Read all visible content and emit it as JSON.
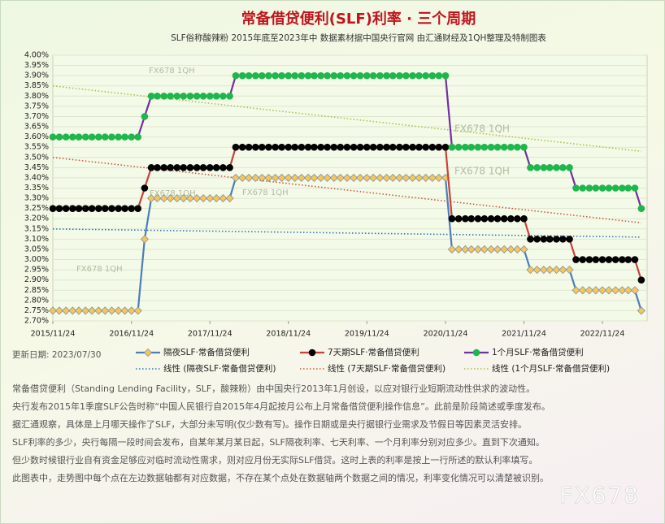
{
  "chart_data": {
    "type": "line",
    "title": "常备借贷便利(SLF)利率 · 三个周期",
    "subtitle": "SLF俗称酸辣粉  2015年底至2023年中  数据素材据中国央行官网  由汇通财经及1QH整理及特制图表",
    "x": [
      "2015/11/24",
      "2015/12/24",
      "2016/01/24",
      "2016/02/24",
      "2016/03/24",
      "2016/04/24",
      "2016/05/24",
      "2016/06/24",
      "2016/07/24",
      "2016/08/24",
      "2016/09/24",
      "2016/10/24",
      "2016/11/24",
      "2016/12/24",
      "2017/01/24",
      "2017/02/24",
      "2017/03/24",
      "2017/04/24",
      "2017/05/24",
      "2017/06/24",
      "2017/07/24",
      "2017/08/24",
      "2017/09/24",
      "2017/10/24",
      "2017/11/24",
      "2017/12/24",
      "2018/01/24",
      "2018/02/24",
      "2018/03/24",
      "2018/04/24",
      "2018/05/24",
      "2018/06/24",
      "2018/07/24",
      "2018/08/24",
      "2018/09/24",
      "2018/10/24",
      "2018/11/24",
      "2018/12/24",
      "2019/01/24",
      "2019/02/24",
      "2019/03/24",
      "2019/04/24",
      "2019/05/24",
      "2019/06/24",
      "2019/07/24",
      "2019/08/24",
      "2019/09/24",
      "2019/10/24",
      "2019/11/24",
      "2019/12/24",
      "2020/01/24",
      "2020/02/24",
      "2020/03/24",
      "2020/04/24",
      "2020/05/24",
      "2020/06/24",
      "2020/07/24",
      "2020/08/24",
      "2020/09/24",
      "2020/10/24",
      "2020/11/24",
      "2020/12/24",
      "2021/01/24",
      "2021/02/24",
      "2021/03/24",
      "2021/04/24",
      "2021/05/24",
      "2021/06/24",
      "2021/07/24",
      "2021/08/24",
      "2021/09/24",
      "2021/10/24",
      "2021/11/24",
      "2021/12/24",
      "2022/01/24",
      "2022/02/24",
      "2022/03/24",
      "2022/04/24",
      "2022/05/24",
      "2022/06/24",
      "2022/07/24",
      "2022/08/24",
      "2022/09/24",
      "2022/10/24",
      "2022/11/24",
      "2022/12/24",
      "2023/01/24",
      "2023/02/24",
      "2023/03/24",
      "2023/04/24",
      "2023/05/24"
    ],
    "series": [
      {
        "name": "隔夜SLF·常备借贷便利",
        "color": "#4a7ebb",
        "marker": "diamond",
        "marker_color": "#f2c75c",
        "values": [
          2.75,
          2.75,
          2.75,
          2.75,
          2.75,
          2.75,
          2.75,
          2.75,
          2.75,
          2.75,
          2.75,
          2.75,
          2.75,
          2.75,
          3.1,
          3.3,
          3.3,
          3.3,
          3.3,
          3.3,
          3.3,
          3.3,
          3.3,
          3.3,
          3.3,
          3.3,
          3.3,
          3.3,
          3.4,
          3.4,
          3.4,
          3.4,
          3.4,
          3.4,
          3.4,
          3.4,
          3.4,
          3.4,
          3.4,
          3.4,
          3.4,
          3.4,
          3.4,
          3.4,
          3.4,
          3.4,
          3.4,
          3.4,
          3.4,
          3.4,
          3.4,
          3.4,
          3.4,
          3.4,
          3.4,
          3.4,
          3.4,
          3.4,
          3.4,
          3.4,
          3.4,
          3.05,
          3.05,
          3.05,
          3.05,
          3.05,
          3.05,
          3.05,
          3.05,
          3.05,
          3.05,
          3.05,
          3.05,
          2.95,
          2.95,
          2.95,
          2.95,
          2.95,
          2.95,
          2.95,
          2.85,
          2.85,
          2.85,
          2.85,
          2.85,
          2.85,
          2.85,
          2.85,
          2.85,
          2.85,
          2.75
        ]
      },
      {
        "name": "7天期SLF·常备借贷便利",
        "color": "#c9413b",
        "marker": "circle",
        "marker_color": "#000000",
        "values": [
          3.25,
          3.25,
          3.25,
          3.25,
          3.25,
          3.25,
          3.25,
          3.25,
          3.25,
          3.25,
          3.25,
          3.25,
          3.25,
          3.25,
          3.35,
          3.45,
          3.45,
          3.45,
          3.45,
          3.45,
          3.45,
          3.45,
          3.45,
          3.45,
          3.45,
          3.45,
          3.45,
          3.45,
          3.55,
          3.55,
          3.55,
          3.55,
          3.55,
          3.55,
          3.55,
          3.55,
          3.55,
          3.55,
          3.55,
          3.55,
          3.55,
          3.55,
          3.55,
          3.55,
          3.55,
          3.55,
          3.55,
          3.55,
          3.55,
          3.55,
          3.55,
          3.55,
          3.55,
          3.55,
          3.55,
          3.55,
          3.55,
          3.55,
          3.55,
          3.55,
          3.55,
          3.2,
          3.2,
          3.2,
          3.2,
          3.2,
          3.2,
          3.2,
          3.2,
          3.2,
          3.2,
          3.2,
          3.2,
          3.1,
          3.1,
          3.1,
          3.1,
          3.1,
          3.1,
          3.1,
          3.0,
          3.0,
          3.0,
          3.0,
          3.0,
          3.0,
          3.0,
          3.0,
          3.0,
          3.0,
          2.9
        ]
      },
      {
        "name": "1个月SLF·常备借贷便利",
        "color": "#7030a0",
        "marker": "circle",
        "marker_color": "#1fb64c",
        "values": [
          3.6,
          3.6,
          3.6,
          3.6,
          3.6,
          3.6,
          3.6,
          3.6,
          3.6,
          3.6,
          3.6,
          3.6,
          3.6,
          3.6,
          3.7,
          3.8,
          3.8,
          3.8,
          3.8,
          3.8,
          3.8,
          3.8,
          3.8,
          3.8,
          3.8,
          3.8,
          3.8,
          3.8,
          3.9,
          3.9,
          3.9,
          3.9,
          3.9,
          3.9,
          3.9,
          3.9,
          3.9,
          3.9,
          3.9,
          3.9,
          3.9,
          3.9,
          3.9,
          3.9,
          3.9,
          3.9,
          3.9,
          3.9,
          3.9,
          3.9,
          3.9,
          3.9,
          3.9,
          3.9,
          3.9,
          3.9,
          3.9,
          3.9,
          3.9,
          3.9,
          3.9,
          3.55,
          3.55,
          3.55,
          3.55,
          3.55,
          3.55,
          3.55,
          3.55,
          3.55,
          3.55,
          3.55,
          3.55,
          3.45,
          3.45,
          3.45,
          3.45,
          3.45,
          3.45,
          3.45,
          3.35,
          3.35,
          3.35,
          3.35,
          3.35,
          3.35,
          3.35,
          3.35,
          3.35,
          3.35,
          3.25
        ]
      }
    ],
    "trendlines": [
      {
        "name": "线性 (隔夜SLF·常备借贷便利)",
        "color": "#2e75b6",
        "x": [
          "2015/11/24",
          "2023/05/24"
        ],
        "values": [
          3.15,
          3.11
        ]
      },
      {
        "name": "线性 (7天期SLF·常备借贷便利)",
        "color": "#c55a3a",
        "x": [
          "2015/11/24",
          "2023/05/24"
        ],
        "values": [
          3.5,
          3.18
        ]
      },
      {
        "name": "线性 (1个月SLF·常备借贷便利)",
        "color": "#a9c24a",
        "x": [
          "2015/11/24",
          "2023/05/24"
        ],
        "values": [
          3.85,
          3.53
        ]
      }
    ],
    "xlim": [
      "2015/11/24",
      "2023/06/20"
    ],
    "xticks": [
      "2015/11/24",
      "2016/11/24",
      "2017/11/24",
      "2018/11/24",
      "2019/11/24",
      "2020/11/24",
      "2021/11/24",
      "2022/11/24"
    ],
    "ylim": [
      2.7,
      4.0
    ],
    "yticks": [
      {
        "value": 2.7,
        "label": "2.70%"
      },
      {
        "value": 2.75,
        "label": "2.75%"
      },
      {
        "value": 2.8,
        "label": "2.80%"
      },
      {
        "value": 2.85,
        "label": "2.85%"
      },
      {
        "value": 2.9,
        "label": "2.90%"
      },
      {
        "value": 2.95,
        "label": "2.95%"
      },
      {
        "value": 3.0,
        "label": "3.00%"
      },
      {
        "value": 3.05,
        "label": "3.05%"
      },
      {
        "value": 3.1,
        "label": "3.10%"
      },
      {
        "value": 3.15,
        "label": "3.15%"
      },
      {
        "value": 3.2,
        "label": "3.20%"
      },
      {
        "value": 3.25,
        "label": "3.25%"
      },
      {
        "value": 3.3,
        "label": "3.30%"
      },
      {
        "value": 3.35,
        "label": "3.35%"
      },
      {
        "value": 3.4,
        "label": "3.40%"
      },
      {
        "value": 3.45,
        "label": "3.45%"
      },
      {
        "value": 3.5,
        "label": "3.50%"
      },
      {
        "value": 3.55,
        "label": "3.55%"
      },
      {
        "value": 3.6,
        "label": "3.60%"
      },
      {
        "value": 3.65,
        "label": "3.65%"
      },
      {
        "value": 3.7,
        "label": "3.70%"
      },
      {
        "value": 3.75,
        "label": "3.75%"
      },
      {
        "value": 3.8,
        "label": "3.80%"
      },
      {
        "value": 3.85,
        "label": "3.85%"
      },
      {
        "value": 3.9,
        "label": "3.90%"
      },
      {
        "value": 3.95,
        "label": "3.95%"
      },
      {
        "value": 4.0,
        "label": "4.00%"
      }
    ],
    "grid": true,
    "watermarks": [
      "FX678 1QH",
      "FX678 1QH",
      "FX678 1QH",
      "FX678 1QH",
      "FX678 1QH",
      "FX678 1QH"
    ],
    "update_date": "更新日期: 2023/07/30",
    "notes": [
      "常备借贷便利（Standing Lending Facility，SLF，酸辣粉）由中国央行2013年1月创设，以应对银行业短期流动性供求的波动性。",
      "央行发布2015年1季度SLF公告时称“中国人民银行自2015年4月起按月公布上月常备借贷便利操作信息”。此前是阶段简述或季度发布。",
      "据汇通观察，具体是上月哪天操作了SLF，大部分未写明(仅少数有写)。操作日期或是央行据银行业需求及节假日等因素灵活安排。",
      "SLF利率的多少，央行每隔一段时间会发布，自某年某月某日起，SLF隔夜利率、七天利率、一个月利率分别对应多少。直到下次通知。",
      "但少数时候银行业自有资金足够应对临时流动性需求，则对应月份无实际SLF借贷。这时上表的利率是按上一行所述的默认利率填写。",
      "此图表中，走势图中每个点在左边数据轴都有对应数据，不存在某个点处在数据轴两个数据之间的情况，利率变化情况可以清楚被识别。"
    ],
    "brand": "FX678"
  }
}
